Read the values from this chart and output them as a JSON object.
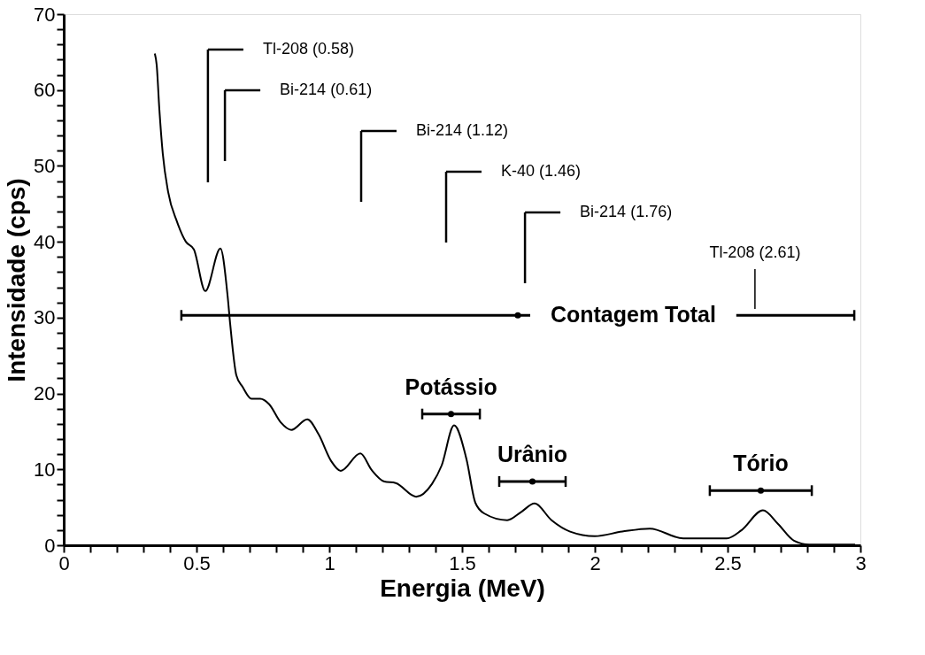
{
  "chart_data": {
    "type": "line",
    "xlabel": "Energia (MeV)",
    "ylabel": "Intensidade (cps)",
    "grid": false,
    "xlim": [
      0,
      3
    ],
    "ylim": [
      0,
      70
    ],
    "xticks": [
      0,
      {
        "value": 0.1,
        "label": null
      },
      {
        "value": 0.2,
        "label": null
      },
      {
        "value": 0.3,
        "label": null
      },
      {
        "value": 0.4,
        "label": null
      },
      0.5,
      {
        "value": 0.6,
        "label": null
      },
      {
        "value": 0.7,
        "label": null
      },
      {
        "value": 0.8,
        "label": null
      },
      {
        "value": 0.9,
        "label": null
      },
      1,
      {
        "value": 1.1,
        "label": null
      },
      {
        "value": 1.2,
        "label": null
      },
      {
        "value": 1.3,
        "label": null
      },
      {
        "value": 1.4,
        "label": null
      },
      1.5,
      {
        "value": 1.6,
        "label": null
      },
      {
        "value": 1.7,
        "label": null
      },
      {
        "value": 1.8,
        "label": null
      },
      {
        "value": 1.9,
        "label": null
      },
      2,
      {
        "value": 2.1,
        "label": null
      },
      {
        "value": 2.2,
        "label": null
      },
      {
        "value": 2.3,
        "label": null
      },
      {
        "value": 2.4,
        "label": null
      },
      2.5,
      {
        "value": 2.6,
        "label": null
      },
      {
        "value": 2.7,
        "label": null
      },
      {
        "value": 2.8,
        "label": null
      },
      {
        "value": 2.9,
        "label": null
      },
      3
    ],
    "yticks": [
      0,
      {
        "value": 2,
        "label": null
      },
      {
        "value": 4,
        "label": null
      },
      {
        "value": 6,
        "label": null
      },
      {
        "value": 8,
        "label": null
      },
      10,
      {
        "value": 12,
        "label": null
      },
      {
        "value": 14,
        "label": null
      },
      {
        "value": 16,
        "label": null
      },
      {
        "value": 18,
        "label": null
      },
      20,
      {
        "value": 22,
        "label": null
      },
      {
        "value": 24,
        "label": null
      },
      {
        "value": 26,
        "label": null
      },
      {
        "value": 28,
        "label": null
      },
      30,
      {
        "value": 32,
        "label": null
      },
      {
        "value": 34,
        "label": null
      },
      {
        "value": 36,
        "label": null
      },
      {
        "value": 38,
        "label": null
      },
      40,
      {
        "value": 42,
        "label": null
      },
      {
        "value": 44,
        "label": null
      },
      {
        "value": 46,
        "label": null
      },
      {
        "value": 48,
        "label": null
      },
      50,
      {
        "value": 52,
        "label": null
      },
      {
        "value": 54,
        "label": null
      },
      {
        "value": 56,
        "label": null
      },
      {
        "value": 58,
        "label": null
      },
      60,
      {
        "value": 62,
        "label": null
      },
      {
        "value": 64,
        "label": null
      },
      {
        "value": 66,
        "label": null
      },
      {
        "value": 68,
        "label": null
      },
      70
    ],
    "series": [
      {
        "color": "#000000",
        "line_style": "solid",
        "marker": "none",
        "x": [
          0.343,
          0.35,
          0.36,
          0.373,
          0.393,
          0.427,
          0.46,
          0.49,
          0.533,
          0.59,
          0.617,
          0.627,
          0.65,
          0.673,
          0.707,
          0.74,
          0.773,
          0.817,
          0.857,
          0.917,
          0.96,
          1.007,
          1.043,
          1.117,
          1.16,
          1.207,
          1.25,
          1.327,
          1.387,
          1.423,
          1.47,
          1.517,
          1.55,
          1.583,
          1.67,
          1.723,
          1.773,
          1.837,
          1.907,
          2.0,
          2.103,
          2.207,
          2.333,
          2.497,
          2.553,
          2.633,
          2.69,
          2.75,
          2.807,
          2.98
        ],
        "values": [
          64.8,
          63.3,
          57.5,
          51.6,
          46.6,
          42.6,
          40.0,
          39.0,
          33.5,
          39.1,
          32.9,
          29.1,
          22.4,
          20.9,
          19.3,
          19.3,
          18.6,
          16.2,
          15.2,
          16.6,
          14.6,
          11.1,
          9.8,
          12.1,
          9.9,
          8.4,
          8.2,
          6.4,
          8.1,
          10.5,
          15.8,
          11.3,
          5.6,
          4.2,
          3.3,
          4.4,
          5.5,
          3.3,
          1.8,
          1.2,
          1.8,
          2.2,
          0.9,
          0.9,
          2.0,
          4.6,
          2.8,
          0.6,
          0.1,
          0.1
        ]
      },
      {
        "type": "scatter",
        "color": "#000000",
        "marker": "circle",
        "x": [
          1.71,
          1.4585,
          1.765,
          2.625
        ],
        "values": [
          30.3,
          17.3,
          8.4,
          7.2
        ],
        "xerrors": [
          [
            0.443,
            2.977
          ],
          [
            1.35,
            1.567
          ],
          [
            1.64,
            1.89
          ],
          [
            2.433,
            2.817
          ]
        ]
      }
    ],
    "ref_lines": [
      {
        "axis": "x",
        "value": 0.543,
        "label": "Tl-208 (0.58)"
      },
      {
        "axis": "x",
        "value": 0.607,
        "label": "Bi-214 (0.61)"
      },
      {
        "axis": "x",
        "value": 1.12,
        "label": "Bi-214 (1.12)"
      },
      {
        "axis": "x",
        "value": 1.44,
        "label": "K-40 (1.46)"
      },
      {
        "axis": "x",
        "value": 1.737,
        "label": "Bi-214 (1.76)"
      },
      {
        "axis": "x",
        "value": 2.603,
        "label": "Tl-208 (2.61)"
      }
    ],
    "annotations": [
      "Contagem Total",
      "Potássio",
      "Urânio",
      "Tório"
    ]
  }
}
